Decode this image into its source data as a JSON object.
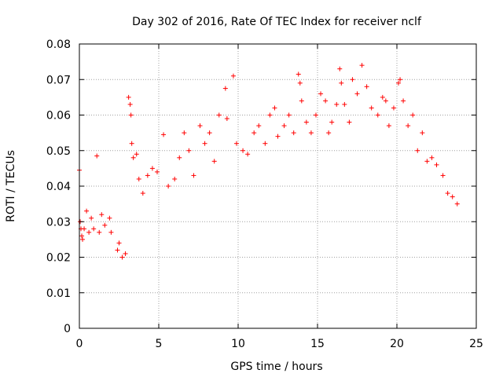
{
  "chart_data": {
    "type": "scatter",
    "title": "Day 302 of 2016, Rate Of TEC Index for receiver nclf",
    "xlabel": "GPS time / hours",
    "ylabel": "ROTI / TECUs",
    "xlim": [
      0,
      25
    ],
    "ylim": [
      0,
      0.08
    ],
    "grid": true,
    "marker": "+",
    "marker_color": "#ff0000",
    "x_ticks": [
      0,
      5,
      10,
      15,
      20,
      25
    ],
    "x_tick_labels": [
      "0",
      "5",
      "10",
      "15",
      "20",
      "25"
    ],
    "y_ticks": [
      0,
      0.01,
      0.02,
      0.03,
      0.04,
      0.05,
      0.06,
      0.07,
      0.08
    ],
    "y_tick_labels": [
      "0",
      "0.01",
      "0.02",
      "0.03",
      "0.04",
      "0.05",
      "0.06",
      "0.07",
      "0.08"
    ],
    "series": [
      {
        "name": "ROTI",
        "x": [
          0.0,
          0.05,
          0.1,
          0.15,
          0.2,
          0.3,
          0.45,
          0.6,
          0.75,
          0.9,
          1.1,
          1.25,
          1.4,
          1.6,
          1.9,
          2.0,
          2.4,
          2.5,
          2.7,
          2.9,
          3.1,
          3.2,
          3.25,
          3.3,
          3.4,
          3.6,
          3.75,
          4.0,
          4.3,
          4.6,
          4.9,
          5.3,
          5.6,
          6.0,
          6.3,
          6.6,
          6.9,
          7.2,
          7.6,
          7.9,
          8.2,
          8.5,
          8.8,
          9.2,
          9.3,
          9.7,
          9.9,
          10.3,
          10.6,
          11.0,
          11.3,
          11.7,
          12.0,
          12.3,
          12.5,
          12.9,
          13.2,
          13.5,
          13.8,
          13.9,
          14.0,
          14.3,
          14.6,
          14.9,
          15.2,
          15.5,
          15.7,
          15.9,
          16.2,
          16.4,
          16.5,
          16.7,
          17.0,
          17.2,
          17.5,
          17.8,
          18.1,
          18.4,
          18.8,
          19.1,
          19.3,
          19.5,
          19.8,
          20.1,
          20.2,
          20.4,
          20.7,
          21.0,
          21.3,
          21.6,
          21.9,
          22.2,
          22.5,
          22.9,
          23.2,
          23.5,
          23.8
        ],
        "y": [
          0.0445,
          0.03,
          0.028,
          0.026,
          0.025,
          0.028,
          0.033,
          0.027,
          0.031,
          0.028,
          0.0485,
          0.027,
          0.032,
          0.029,
          0.031,
          0.027,
          0.022,
          0.024,
          0.02,
          0.021,
          0.065,
          0.063,
          0.06,
          0.052,
          0.048,
          0.049,
          0.042,
          0.038,
          0.043,
          0.045,
          0.044,
          0.0545,
          0.04,
          0.042,
          0.048,
          0.055,
          0.05,
          0.043,
          0.057,
          0.052,
          0.055,
          0.047,
          0.06,
          0.0675,
          0.059,
          0.071,
          0.052,
          0.05,
          0.049,
          0.055,
          0.057,
          0.052,
          0.06,
          0.062,
          0.054,
          0.057,
          0.06,
          0.055,
          0.0715,
          0.069,
          0.064,
          0.058,
          0.055,
          0.06,
          0.066,
          0.064,
          0.055,
          0.058,
          0.063,
          0.073,
          0.069,
          0.063,
          0.058,
          0.07,
          0.066,
          0.074,
          0.068,
          0.062,
          0.06,
          0.065,
          0.064,
          0.057,
          0.062,
          0.069,
          0.07,
          0.064,
          0.057,
          0.06,
          0.05,
          0.055,
          0.047,
          0.048,
          0.046,
          0.043,
          0.038,
          0.037,
          0.035
        ]
      }
    ]
  }
}
